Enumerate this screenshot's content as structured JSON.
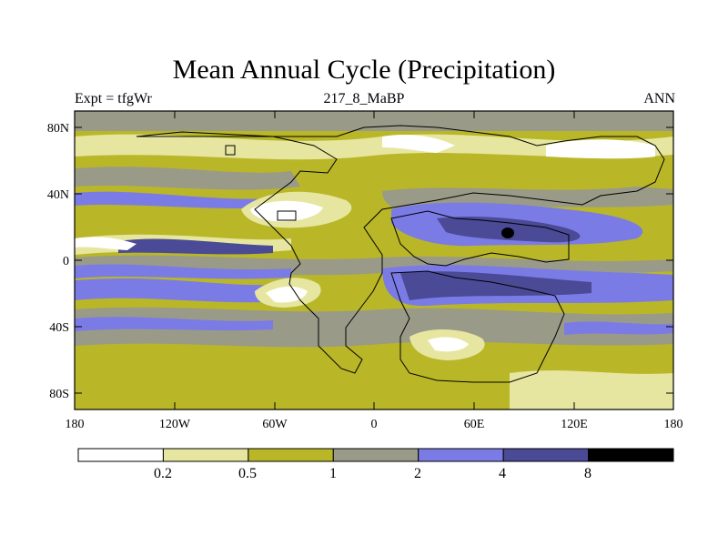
{
  "title": "Mean Annual Cycle (Precipitation)",
  "subtitle_left": "Expt = tfgWr",
  "subtitle_center": "217_8_MaBP",
  "subtitle_right": "ANN",
  "y_ticks": [
    "80N",
    "40N",
    "0",
    "40S",
    "80S"
  ],
  "x_ticks": [
    "180",
    "120W",
    "60W",
    "0",
    "60E",
    "120E",
    "180"
  ],
  "colorbar": {
    "labels": [
      "0.2",
      "0.5",
      "1",
      "2",
      "4",
      "8"
    ],
    "colors": [
      "#ffffff",
      "#e6e6a0",
      "#b9b728",
      "#9a9a88",
      "#7b7be6",
      "#4a4a96",
      "#000000"
    ]
  },
  "chart_data": {
    "type": "heatmap",
    "title": "Mean Annual Cycle (Precipitation)",
    "variable": "Precipitation",
    "season": "ANN",
    "experiment": "tfgWr",
    "period": "217_8_MaBP",
    "x_range_deg": [
      -180,
      180
    ],
    "y_range_deg": [
      -90,
      90
    ],
    "levels": [
      0.2,
      0.5,
      1,
      2,
      4,
      8
    ]
  }
}
